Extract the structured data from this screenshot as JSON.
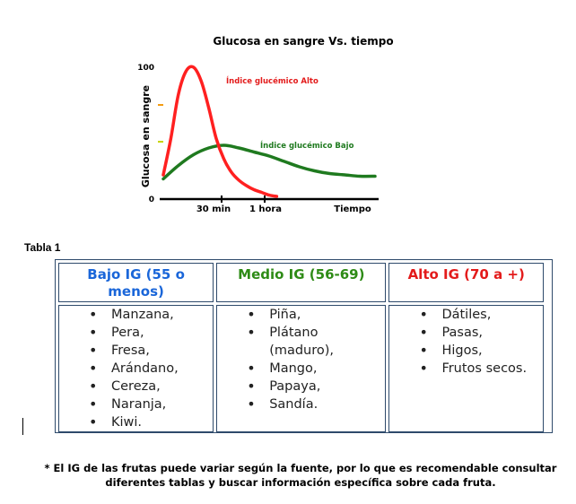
{
  "chart_data": {
    "type": "line",
    "title": "Glucosa en sangre Vs. tiempo",
    "ylabel": "Glucosa en sangre",
    "xlabel": "",
    "ytick_labels": [
      "100",
      "0"
    ],
    "xtick_labels": [
      "30 min",
      "1 hora",
      "Tiempo"
    ],
    "ylim": [
      0,
      100
    ],
    "series": [
      {
        "name": "Índice glucémico Alto",
        "color": "#ff2020",
        "x": [
          0,
          5,
          10,
          15,
          20,
          25,
          30,
          35,
          40,
          45,
          50,
          55,
          60,
          65,
          70,
          75
        ],
        "y": [
          18,
          45,
          78,
          95,
          98,
          88,
          68,
          45,
          30,
          20,
          14,
          10,
          7,
          5,
          3,
          2
        ]
      },
      {
        "name": "Índice glucémico Bajo",
        "color": "#1f7a1f",
        "x": [
          0,
          10,
          20,
          30,
          40,
          50,
          60,
          70,
          80,
          90,
          100,
          110,
          120,
          130,
          140
        ],
        "y": [
          15,
          25,
          33,
          38,
          40,
          38,
          35,
          32,
          28,
          24,
          21,
          19,
          18,
          17,
          17
        ]
      }
    ],
    "grid": false
  },
  "table": {
    "caption": "Tabla 1",
    "headers": {
      "low": "Bajo IG (55 o menos)",
      "mid": "Medio IG (56-69)",
      "high": "Alto IG (70 a +)"
    },
    "low_items": [
      "Manzana,",
      "Pera,",
      "Fresa,",
      "Arándano,",
      "Cereza,",
      "Naranja,",
      "Kiwi."
    ],
    "mid_items": [
      "Piña,",
      "Plátano (maduro),",
      "Mango,",
      "Papaya,",
      "Sandía."
    ],
    "high_items": [
      "Dátiles,",
      "Pasas,",
      "Higos,",
      "Frutos secos."
    ]
  },
  "footnote": "* El IG de las frutas puede variar según la fuente, por lo que es recomendable consultar diferentes tablas y buscar información específica sobre cada fruta."
}
